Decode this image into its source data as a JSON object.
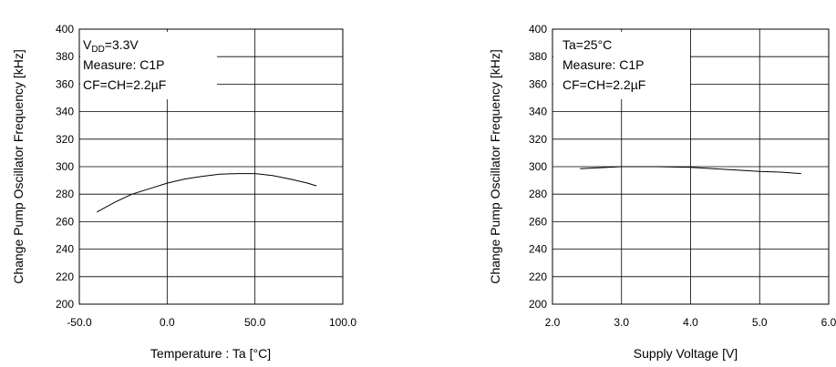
{
  "chart_data": [
    {
      "type": "line",
      "title": "",
      "xlabel": "Temperature : Ta [°C]",
      "ylabel": "Change Pump Oscillator Frequency [kHz]",
      "xlim": [
        -50,
        100
      ],
      "ylim": [
        200,
        400
      ],
      "x_ticks": [
        "-50.0",
        "0.0",
        "50.0",
        "100.0"
      ],
      "y_ticks": [
        "200",
        "220",
        "240",
        "260",
        "280",
        "300",
        "320",
        "340",
        "360",
        "380",
        "400"
      ],
      "annotations": {
        "line1_main": "V",
        "line1_sub": "DD",
        "line1_rest": "=3.3V",
        "line2": "Measure: C1P",
        "line3": "CF=CH=2.2µF"
      },
      "grid": true,
      "series": [
        {
          "x": [
            -40,
            -30,
            -20,
            -10,
            0,
            10,
            20,
            30,
            40,
            50,
            60,
            70,
            80,
            85
          ],
          "y": [
            267,
            274,
            280,
            284,
            288,
            291,
            293,
            294.5,
            295,
            295,
            293.5,
            291,
            288,
            286
          ]
        }
      ]
    },
    {
      "type": "line",
      "title": "",
      "xlabel": "Supply Voltage [V]",
      "ylabel": "Change Pump Oscillator Frequency [kHz]",
      "xlim": [
        2.0,
        6.0
      ],
      "ylim": [
        200,
        400
      ],
      "x_ticks": [
        "2.0",
        "3.0",
        "4.0",
        "5.0",
        "6.0"
      ],
      "y_ticks": [
        "200",
        "220",
        "240",
        "260",
        "280",
        "300",
        "320",
        "340",
        "360",
        "380",
        "400"
      ],
      "annotations": {
        "line1": "Ta=25°C",
        "line2": "Measure: C1P",
        "line3": "CF=CH=2.2µF"
      },
      "grid": true,
      "series": [
        {
          "x": [
            2.4,
            2.8,
            3.0,
            3.5,
            4.0,
            4.5,
            5.0,
            5.3,
            5.6
          ],
          "y": [
            298.5,
            299.5,
            300,
            300,
            299.5,
            298,
            296.5,
            296,
            295
          ]
        }
      ]
    }
  ]
}
